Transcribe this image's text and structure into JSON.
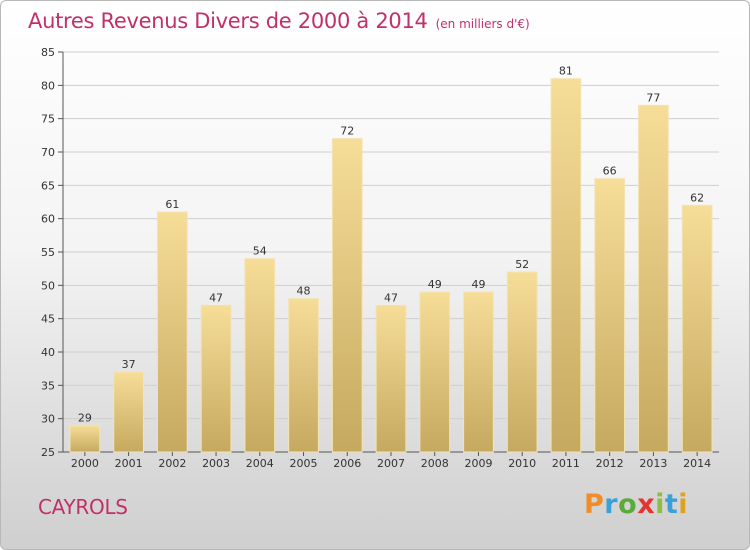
{
  "header": {
    "title": "Autres Revenus Divers de 2000 à 2014",
    "subtitle": "(en milliers d'€)"
  },
  "footer": {
    "place": "CAYROLS",
    "brand": "Proxiti",
    "brand_letters": [
      {
        "ch": "P",
        "color": "#f28c28"
      },
      {
        "ch": "r",
        "color": "#3aa0d8"
      },
      {
        "ch": "o",
        "color": "#5aaa3c"
      },
      {
        "ch": "x",
        "color": "#e3342f"
      },
      {
        "ch": "i",
        "color": "#8cbf3f"
      },
      {
        "ch": "t",
        "color": "#3aa0d8"
      },
      {
        "ch": "i",
        "color": "#e0a020"
      }
    ]
  },
  "colors": {
    "accent": "#c0306a",
    "bar_top": "#f6dd98",
    "bar_bottom": "#c6a960",
    "grid": "#cfcfcf",
    "axis": "#555555"
  },
  "chart_data": {
    "type": "bar",
    "title": "Autres Revenus Divers de 2000 à 2014",
    "subtitle": "(en milliers d'€)",
    "categories": [
      "2000",
      "2001",
      "2002",
      "2003",
      "2004",
      "2005",
      "2006",
      "2007",
      "2008",
      "2009",
      "2010",
      "2011",
      "2012",
      "2013",
      "2014"
    ],
    "values": [
      29,
      37,
      61,
      47,
      54,
      48,
      72,
      47,
      49,
      49,
      52,
      81,
      66,
      77,
      62
    ],
    "ylim": [
      25,
      85
    ],
    "yticks": [
      25,
      30,
      35,
      40,
      45,
      50,
      55,
      60,
      65,
      70,
      75,
      80,
      85
    ],
    "grid": true,
    "data_labels": true
  }
}
